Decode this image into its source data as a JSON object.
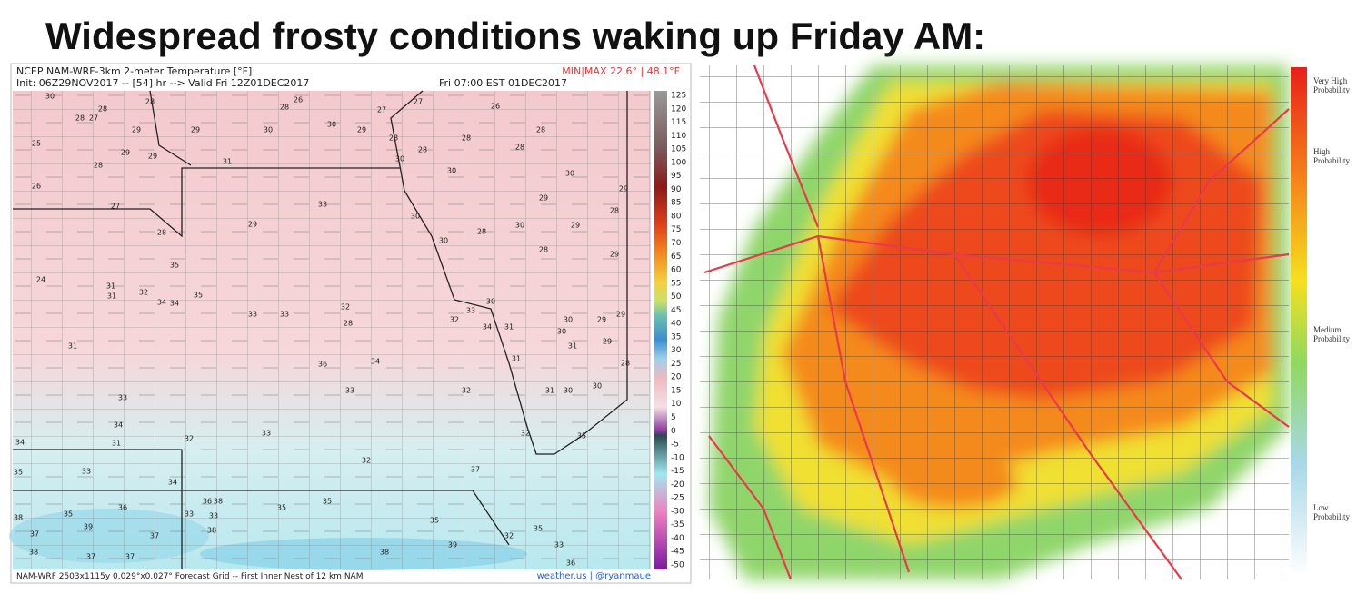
{
  "title": "Widespread frosty conditions waking up Friday AM:",
  "left_map": {
    "header": {
      "line1": "NCEP NAM-WRF-3km 2-meter Temperature [°F]",
      "line2": "Init: 06Z29NOV2017 -- [54] hr --> Valid Fri 12Z01DEC2017",
      "valid": "Fri 07:00 EST 01DEC2017",
      "minmax": "MIN|MAX 22.6° | 48.1°F"
    },
    "colorbar_ticks": [
      125,
      120,
      115,
      110,
      105,
      100,
      95,
      90,
      85,
      80,
      75,
      70,
      65,
      60,
      55,
      50,
      45,
      40,
      35,
      30,
      25,
      20,
      15,
      10,
      5,
      0,
      -5,
      -10,
      -15,
      -20,
      -25,
      -30,
      -35,
      -40,
      -45,
      -50
    ],
    "station_values": [
      30,
      28,
      28,
      27,
      28,
      29,
      29,
      30,
      28,
      26,
      30,
      29,
      27,
      28,
      27,
      28,
      28,
      30,
      30,
      26,
      28,
      28,
      30,
      29,
      25,
      29,
      29,
      28,
      31,
      26,
      27,
      33,
      29,
      30,
      30,
      28,
      30,
      29,
      28,
      29,
      29,
      28,
      28,
      24,
      35,
      31,
      32,
      35,
      31,
      34,
      34,
      33,
      33,
      32,
      28,
      32,
      33,
      30,
      34,
      31,
      30,
      30,
      29,
      29,
      31,
      29,
      28,
      31,
      36,
      34,
      31,
      33,
      33,
      32,
      31,
      30,
      30,
      34,
      33,
      32,
      34,
      31,
      32,
      35,
      32,
      37,
      33,
      34,
      35,
      36,
      36,
      38,
      35,
      35,
      33,
      33,
      35,
      39,
      38,
      37,
      37,
      38,
      39,
      35,
      32,
      35,
      38,
      38,
      37,
      37,
      36,
      33
    ],
    "footer": "NAM-WRF 2503x1115y 0.029°x0.027° Forecast Grid -- First Inner Nest of 12 km NAM",
    "credit": "weather.us | @ryanmaue"
  },
  "right_map": {
    "legend": [
      "Very High Probability",
      "High Probability",
      "Medium Probability",
      "Low Probability"
    ]
  }
}
